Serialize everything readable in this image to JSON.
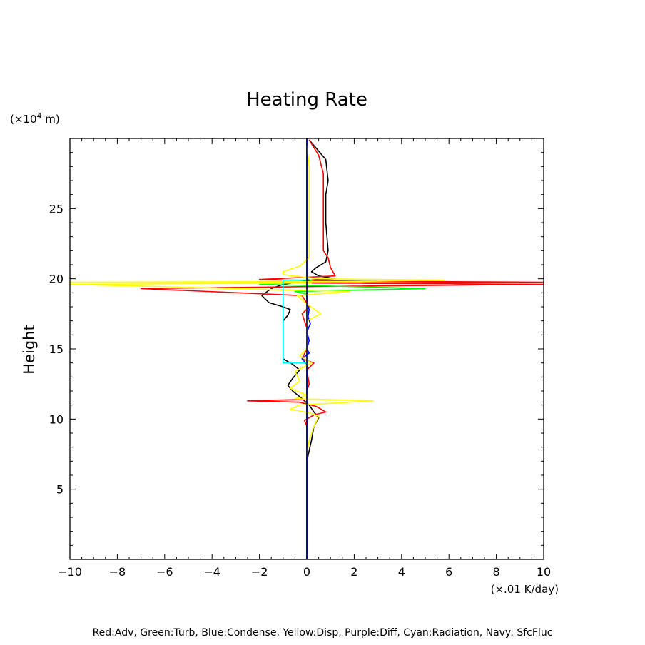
{
  "chart_data": {
    "type": "line",
    "title": "Heating Rate",
    "xlabel": "",
    "ylabel": "Height",
    "x_unit": "(×.01 K/day)",
    "y_unit_prefix": "(×10",
    "y_unit_exp": "4",
    "y_unit_suffix": " m)",
    "xlim": [
      -10,
      10
    ],
    "ylim": [
      0,
      30
    ],
    "x_ticks": [
      "−10",
      "−8",
      "−6",
      "−4",
      "−2",
      "0",
      "2",
      "4",
      "6",
      "8",
      "10"
    ],
    "y_ticks": [
      "5",
      "10",
      "15",
      "20",
      "25"
    ],
    "footer": "Red:Adv, Green:Turb, Blue:Condense, Yellow:Disp, Purple:Diff, Cyan:Radiation, Navy: SfcFluc",
    "series": [
      {
        "color": "#000000",
        "points": [
          [
            0,
            0
          ],
          [
            0,
            7
          ],
          [
            0.2,
            8.5
          ],
          [
            0.3,
            9.5
          ],
          [
            0.5,
            10.1
          ],
          [
            0.3,
            10.5
          ],
          [
            0.1,
            11
          ],
          [
            -0.3,
            11.6
          ],
          [
            -0.6,
            12
          ],
          [
            -0.8,
            12.4
          ],
          [
            -0.6,
            12.9
          ],
          [
            -0.3,
            13.5
          ],
          [
            -0.6,
            13.9
          ],
          [
            -1.0,
            14.3
          ],
          [
            -1.0,
            15
          ],
          [
            -1.0,
            17
          ],
          [
            -0.8,
            17.4
          ],
          [
            -0.7,
            17.8
          ],
          [
            -1.0,
            18
          ],
          [
            -1.6,
            18.3
          ],
          [
            -1.9,
            18.8
          ],
          [
            -1.5,
            19.3
          ],
          [
            -1.0,
            19.6
          ],
          [
            0.2,
            19.9
          ],
          [
            1.2,
            20.0
          ],
          [
            0.5,
            20.2
          ],
          [
            0.2,
            20.5
          ],
          [
            0.4,
            20.8
          ],
          [
            0.8,
            21.2
          ],
          [
            0.9,
            22
          ],
          [
            0.8,
            24
          ],
          [
            0.8,
            26
          ],
          [
            0.9,
            27
          ],
          [
            0.8,
            28.5
          ],
          [
            0.1,
            29.9
          ]
        ]
      },
      {
        "color": "#ff0000",
        "points": [
          [
            0,
            0
          ],
          [
            0,
            9.5
          ],
          [
            -0.1,
            9.9
          ],
          [
            0.3,
            10.3
          ],
          [
            0.8,
            10.5
          ],
          [
            0.4,
            10.9
          ],
          [
            -0.3,
            11.2
          ],
          [
            -2.5,
            11.3
          ],
          [
            0.0,
            11.4
          ],
          [
            0.0,
            12
          ],
          [
            0.1,
            12.5
          ],
          [
            0.0,
            13.5
          ],
          [
            0.3,
            14
          ],
          [
            -0.2,
            14.3
          ],
          [
            0.0,
            15
          ],
          [
            0.0,
            16.5
          ],
          [
            -0.2,
            17.5
          ],
          [
            0.1,
            18
          ],
          [
            -0.2,
            18.8
          ],
          [
            -7.0,
            19.3
          ],
          [
            0.5,
            19.45
          ],
          [
            10.0,
            19.6
          ],
          [
            -0.5,
            19.7
          ],
          [
            10.0,
            19.75
          ],
          [
            1.0,
            19.85
          ],
          [
            -2.0,
            19.95
          ],
          [
            1.2,
            20.2
          ],
          [
            1.0,
            20.8
          ],
          [
            0.9,
            21.5
          ],
          [
            0.7,
            22
          ],
          [
            0.7,
            25
          ],
          [
            0.7,
            27.5
          ],
          [
            0.5,
            28.8
          ],
          [
            0.1,
            29.9
          ]
        ]
      },
      {
        "color": "#00ff00",
        "points": [
          [
            0,
            0
          ],
          [
            0,
            18.9
          ],
          [
            -0.5,
            19.1
          ],
          [
            5.0,
            19.3
          ],
          [
            0.5,
            19.5
          ],
          [
            -2.0,
            19.6
          ],
          [
            0.3,
            19.8
          ],
          [
            0,
            20
          ],
          [
            0,
            30
          ]
        ]
      },
      {
        "color": "#0000ff",
        "points": [
          [
            0,
            0
          ],
          [
            0,
            13.9
          ],
          [
            -0.2,
            14.3
          ],
          [
            0.1,
            14.7
          ],
          [
            0,
            15
          ],
          [
            0.1,
            15.6
          ],
          [
            0.0,
            16.2
          ],
          [
            0.15,
            16.8
          ],
          [
            0.05,
            17.3
          ],
          [
            0.1,
            17.8
          ],
          [
            0.0,
            18.2
          ],
          [
            0,
            30
          ]
        ]
      },
      {
        "color": "#ffff00",
        "points": [
          [
            0,
            7.5
          ],
          [
            0.1,
            8.5
          ],
          [
            0.3,
            9.5
          ],
          [
            0.5,
            10.2
          ],
          [
            0.2,
            10.4
          ],
          [
            -0.7,
            10.7
          ],
          [
            -0.3,
            11.0
          ],
          [
            2.8,
            11.3
          ],
          [
            -0.5,
            11.45
          ],
          [
            0.0,
            11.7
          ],
          [
            -0.7,
            12.2
          ],
          [
            -0.3,
            12.7
          ],
          [
            -0.5,
            13.4
          ],
          [
            0.2,
            14
          ],
          [
            -0.3,
            14.5
          ],
          [
            0.0,
            15
          ],
          [
            0.0,
            17
          ],
          [
            0.6,
            17.5
          ],
          [
            0.0,
            18.2
          ],
          [
            -0.4,
            18.8
          ],
          [
            1.8,
            19.1
          ],
          [
            -10.0,
            19.6
          ],
          [
            0.2,
            19.7
          ],
          [
            -10.0,
            19.75
          ],
          [
            1.5,
            19.8
          ],
          [
            5.8,
            19.9
          ],
          [
            0.5,
            20.0
          ],
          [
            -1.0,
            20.3
          ],
          [
            -1.0,
            20.5
          ],
          [
            -0.3,
            20.9
          ],
          [
            0.1,
            21.5
          ],
          [
            0.1,
            25
          ],
          [
            0.1,
            28
          ],
          [
            0,
            29.5
          ]
        ]
      },
      {
        "color": "#00ffff",
        "points": [
          [
            0,
            14.0
          ],
          [
            -1.0,
            14.0
          ],
          [
            -1.0,
            19.9
          ],
          [
            0.0,
            19.9
          ]
        ]
      },
      {
        "color": "#000080",
        "points": [
          [
            0,
            0
          ],
          [
            0,
            30
          ]
        ]
      }
    ]
  }
}
